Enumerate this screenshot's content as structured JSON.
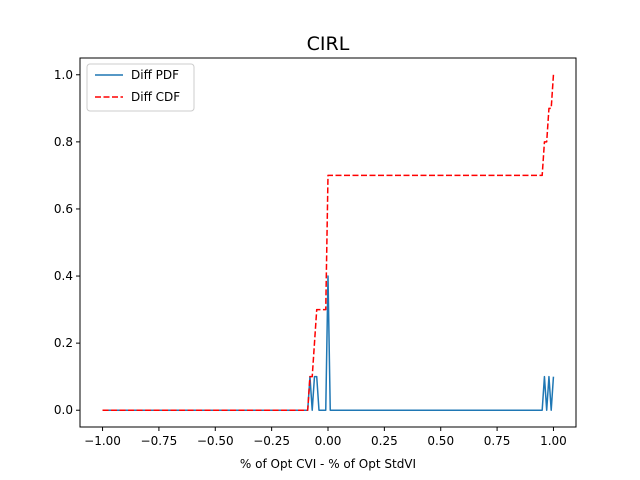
{
  "chart_data": {
    "type": "line",
    "title": "CIRL",
    "xlabel": "% of Opt CVI - % of Opt StdVI",
    "ylabel": "",
    "xlim": [
      -1.1,
      1.1
    ],
    "ylim": [
      -0.05,
      1.05
    ],
    "xticks": [
      -1.0,
      -0.75,
      -0.5,
      -0.25,
      0.0,
      0.25,
      0.5,
      0.75,
      1.0
    ],
    "xtick_labels": [
      "−1.00",
      "−0.75",
      "−0.50",
      "−0.25",
      "0.00",
      "0.25",
      "0.50",
      "0.75",
      "1.00"
    ],
    "yticks": [
      0.0,
      0.2,
      0.4,
      0.6,
      0.8,
      1.0
    ],
    "ytick_labels": [
      "0.0",
      "0.2",
      "0.4",
      "0.6",
      "0.8",
      "1.0"
    ],
    "grid": false,
    "legend_position": "top-left",
    "series": [
      {
        "name": "Diff PDF",
        "color": "#1f77b4",
        "style": "solid",
        "points": [
          [
            -1.0,
            0.0
          ],
          [
            -0.09,
            0.0
          ],
          [
            -0.08,
            0.1
          ],
          [
            -0.07,
            0.0
          ],
          [
            -0.06,
            0.1
          ],
          [
            -0.05,
            0.1
          ],
          [
            -0.04,
            0.0
          ],
          [
            -0.01,
            0.0
          ],
          [
            0.0,
            0.4
          ],
          [
            0.01,
            0.0
          ],
          [
            0.95,
            0.0
          ],
          [
            0.96,
            0.1
          ],
          [
            0.97,
            0.0
          ],
          [
            0.98,
            0.1
          ],
          [
            0.99,
            0.0
          ],
          [
            1.0,
            0.1
          ]
        ]
      },
      {
        "name": "Diff CDF",
        "color": "#ff0000",
        "style": "dashed",
        "points": [
          [
            -1.0,
            0.0
          ],
          [
            -0.09,
            0.0
          ],
          [
            -0.08,
            0.1
          ],
          [
            -0.07,
            0.1
          ],
          [
            -0.06,
            0.2
          ],
          [
            -0.05,
            0.3
          ],
          [
            -0.01,
            0.3
          ],
          [
            0.0,
            0.7
          ],
          [
            0.95,
            0.7
          ],
          [
            0.96,
            0.8
          ],
          [
            0.97,
            0.8
          ],
          [
            0.98,
            0.9
          ],
          [
            0.99,
            0.9
          ],
          [
            1.0,
            1.0
          ]
        ]
      }
    ]
  }
}
